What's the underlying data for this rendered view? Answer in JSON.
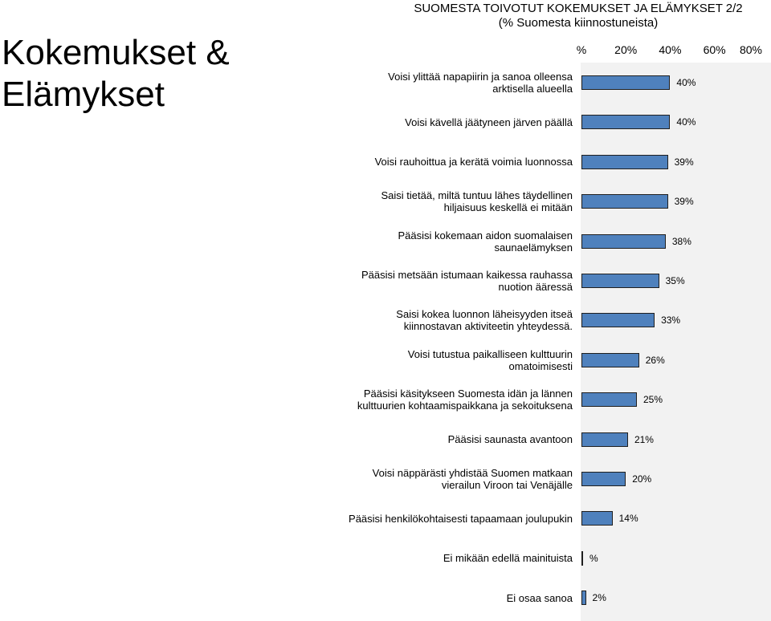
{
  "page_title": "Kokemukset & Elämykset",
  "chart_data": {
    "type": "bar",
    "orientation": "horizontal",
    "title": "SUOMESTA TOIVOTUT KOKEMUKSET JA ELÄMYKSET 2/2",
    "subtitle": "(% Suomesta kiinnostuneista)",
    "x_ticks": [
      "%",
      "20%",
      "40%",
      "60%",
      "80%"
    ],
    "xlim": [
      0,
      80
    ],
    "categories": [
      "Voisi ylittää napapiirin ja sanoa olleensa arktisella alueella",
      "Voisi kävellä jäätyneen järven päällä",
      "Voisi rauhoittua ja kerätä voimia luonnossa",
      "Saisi tietää, miltä tuntuu lähes täydellinen hiljaisuus keskellä ei mitään",
      "Pääsisi kokemaan aidon suomalaisen saunaelämyksen",
      "Pääsisi metsään istumaan kaikessa rauhassa nuotion ääressä",
      "Saisi kokea luonnon läheisyyden itseä kiinnostavan aktiviteetin yhteydessä.",
      "Voisi tutustua paikalliseen kulttuurin omatoimisesti",
      "Pääsisi käsitykseen Suomesta idän ja lännen kulttuurien kohtaamispaikkana ja sekoituksena",
      "Pääsisi saunasta avantoon",
      "Voisi näppärästi yhdistää Suomen matkaan vierailun Viroon tai Venäjälle",
      "Pääsisi henkilökohtaisesti tapaamaan joulupukin",
      "Ei mikään edellä mainituista",
      "Ei osaa sanoa"
    ],
    "values": [
      40,
      40,
      39,
      39,
      38,
      35,
      33,
      26,
      25,
      21,
      20,
      14,
      0,
      2
    ],
    "value_labels": [
      "40%",
      "40%",
      "39%",
      "39%",
      "38%",
      "35%",
      "33%",
      "26%",
      "25%",
      "21%",
      "20%",
      "14%",
      "%",
      "2%"
    ],
    "colors": {
      "bar": "#4f81bd",
      "bar_border": "#1f1f1f",
      "plot_bg": "#f2f2f2"
    },
    "grid": false,
    "legend": "none"
  }
}
